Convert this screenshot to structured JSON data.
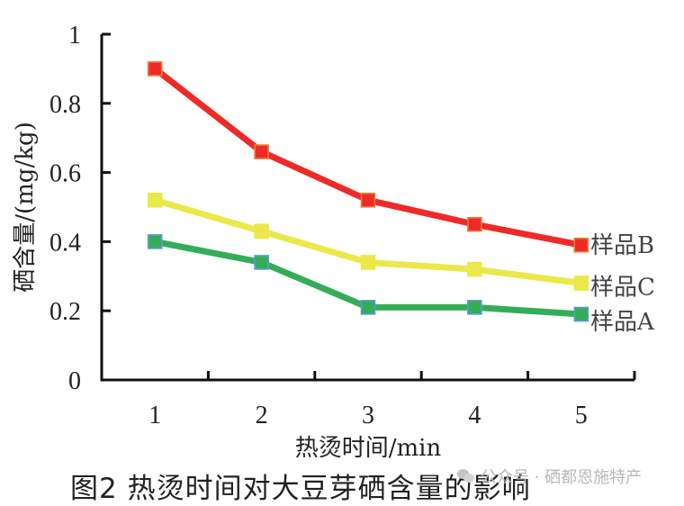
{
  "chart_data": {
    "type": "line",
    "title": "图2  热烫时间对大豆芽硒含量的影响",
    "xlabel": "热烫时间/min",
    "ylabel": "硒含量/(mg/kg)",
    "categories": [
      "1",
      "2",
      "3",
      "4",
      "5"
    ],
    "ylim": [
      0,
      1
    ],
    "yticks": [
      "0",
      "0.2",
      "0.4",
      "0.6",
      "0.8",
      "1"
    ],
    "grid": false,
    "legend_position": "inline-right",
    "series": [
      {
        "name": "样品B",
        "color": "#ee2a27",
        "marker_edge": "#f07a3c",
        "values": [
          0.9,
          0.66,
          0.52,
          0.45,
          0.39
        ]
      },
      {
        "name": "样品C",
        "color": "#ebe84a",
        "marker_edge": "#ebe84a",
        "values": [
          0.52,
          0.43,
          0.34,
          0.32,
          0.28
        ]
      },
      {
        "name": "样品A",
        "color": "#33ae57",
        "marker_edge": "#5b9bd5",
        "values": [
          0.4,
          0.34,
          0.21,
          0.21,
          0.19
        ]
      }
    ]
  },
  "caption": "图2  热烫时间对大豆芽硒含量的影响",
  "watermark": "公众号 · 硒都恩施特产"
}
